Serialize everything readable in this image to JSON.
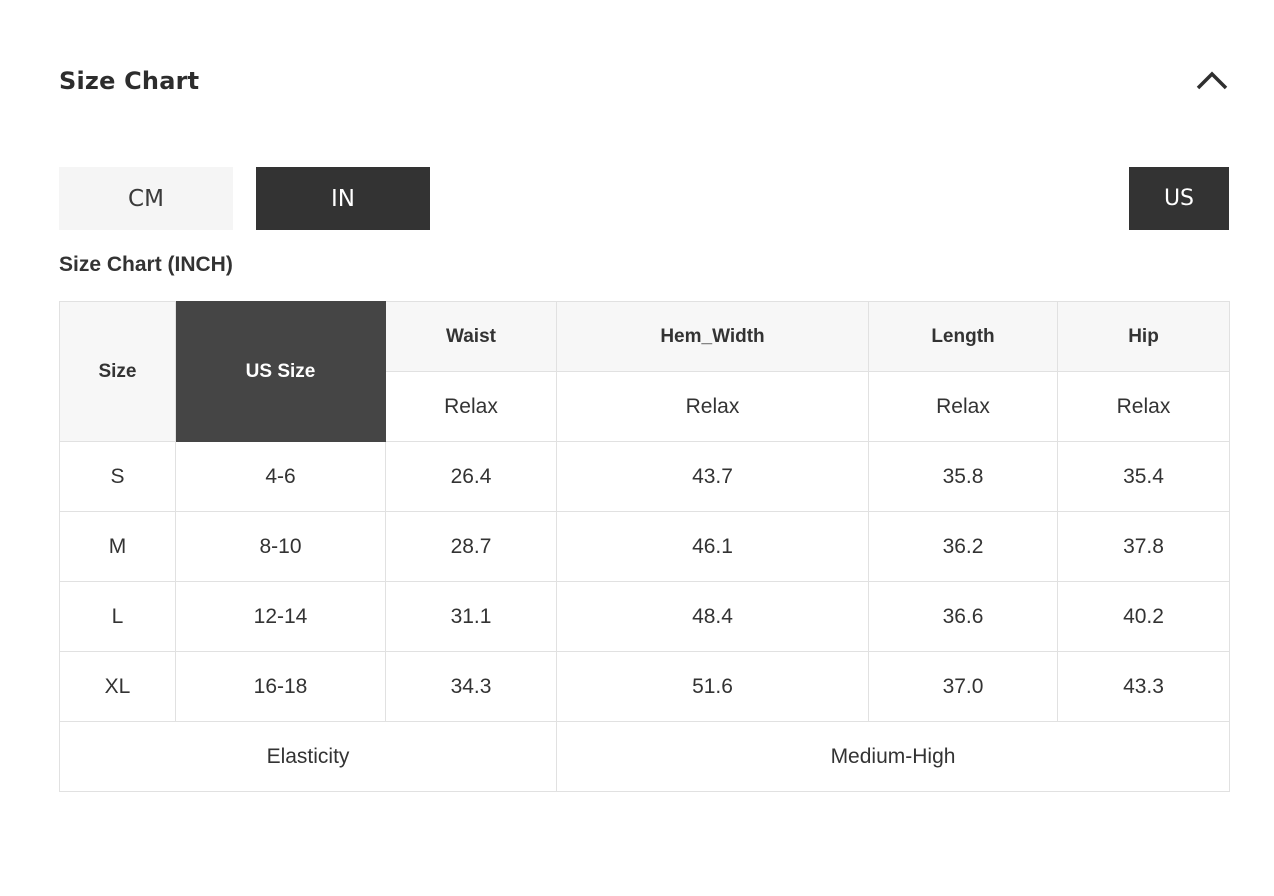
{
  "accordion": {
    "title": "Size Chart",
    "collapse_icon": "chevron-up"
  },
  "unit_toggle": {
    "options": [
      {
        "label": "CM",
        "active": false
      },
      {
        "label": "IN",
        "active": true
      }
    ]
  },
  "region_toggle": {
    "label": "US",
    "active": true
  },
  "table_title": "Size Chart (INCH)",
  "size_table": {
    "corner_headers": {
      "size": "Size",
      "us_size": "US Size"
    },
    "measure_headers": [
      "Waist",
      "Hem_Width",
      "Length",
      "Hip"
    ],
    "fit_row": [
      "Relax",
      "Relax",
      "Relax",
      "Relax"
    ],
    "rows": [
      {
        "size": "S",
        "us_size": "4-6",
        "values": [
          "26.4",
          "43.7",
          "35.8",
          "35.4"
        ]
      },
      {
        "size": "M",
        "us_size": "8-10",
        "values": [
          "28.7",
          "46.1",
          "36.2",
          "37.8"
        ]
      },
      {
        "size": "L",
        "us_size": "12-14",
        "values": [
          "31.1",
          "48.4",
          "36.6",
          "40.2"
        ]
      },
      {
        "size": "XL",
        "us_size": "16-18",
        "values": [
          "34.3",
          "51.6",
          "37.0",
          "43.3"
        ]
      }
    ],
    "footer": {
      "label": "Elasticity",
      "value": "Medium-High"
    }
  },
  "colors": {
    "active_dark": "#333333",
    "inactive_light": "#f5f5f5",
    "header_cell_bg": "#f7f7f7",
    "highlight_cell_bg": "#454545",
    "table_border": "#e1e1e1",
    "text": "#333333"
  }
}
